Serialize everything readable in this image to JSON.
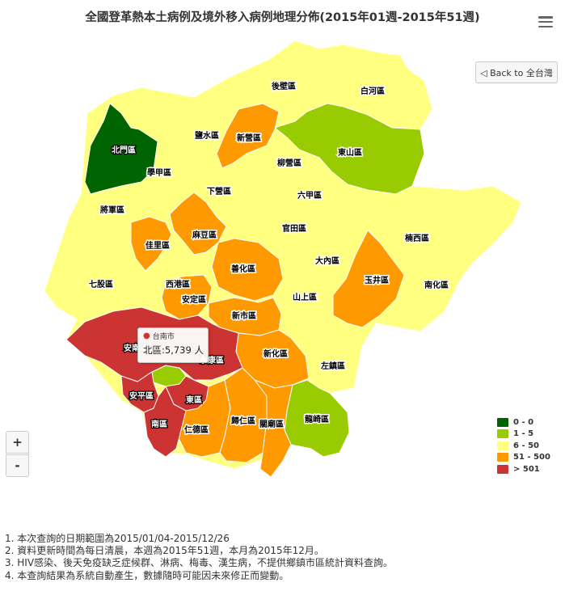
{
  "title": "全國登革熱本土病例及境外移入病例地理分佈(2015年01週-2015年51週)",
  "back_button": "◁ Back to 全台灣",
  "zoom": {
    "in": "+",
    "out": "-"
  },
  "colors": {
    "c0": "#006400",
    "c1": "#99cc00",
    "c2": "#ffff80",
    "c3": "#ff9900",
    "c4": "#cc3333"
  },
  "legend": [
    {
      "label": "0 - 0",
      "color": "#006400"
    },
    {
      "label": "1 - 5",
      "color": "#99cc00"
    },
    {
      "label": "6 - 50",
      "color": "#ffff80"
    },
    {
      "label": "51 - 500",
      "color": "#ff9900"
    },
    {
      "label": "> 501",
      "color": "#cc3333"
    }
  ],
  "districts": {
    "houbi": "後壁區",
    "baihe": "白河區",
    "yanshui": "鹽水區",
    "xinying": "新營區",
    "dongshan": "東山區",
    "beimen": "北門區",
    "liuying": "柳營區",
    "xuejia": "學甲區",
    "xiaying": "下營區",
    "liujia": "六甲區",
    "jiangjun": "將軍區",
    "madou": "麻豆區",
    "guantian": "官田區",
    "nanxi": "楠西區",
    "jiali": "佳里區",
    "danei": "大內區",
    "shanhua": "善化區",
    "qigu": "七股區",
    "xigang": "西港區",
    "yujing": "玉井區",
    "nanhua": "南化區",
    "anding": "安定區",
    "shanshang": "山上區",
    "xinshi": "新市區",
    "annan": "安南區",
    "yongkang": "永康區",
    "xinhua": "新化區",
    "zuozhen": "左鎮區",
    "anping": "安平區",
    "east": "東區",
    "longqi": "龍崎區",
    "south": "南區",
    "rende": "仁德區",
    "guiren": "歸仁區",
    "guanmiao": "關廟區"
  },
  "tooltip": {
    "city": "台南市",
    "district": "北區",
    "value": "5,739 人"
  },
  "notes": [
    "1. 本次查詢的日期範圍為2015/01/04-2015/12/26",
    "2. 資料更新時間為每日清晨，本週為2015年51週，本月為2015年12月。",
    "3. HIV感染、後天免疫缺乏症候群、淋病、梅毒、漢生病，不提供鄉鎮市區統計資料查詢。",
    "4. 本查詢結果為系統自動產生，數據隨時可能因未來修正而變動。"
  ]
}
